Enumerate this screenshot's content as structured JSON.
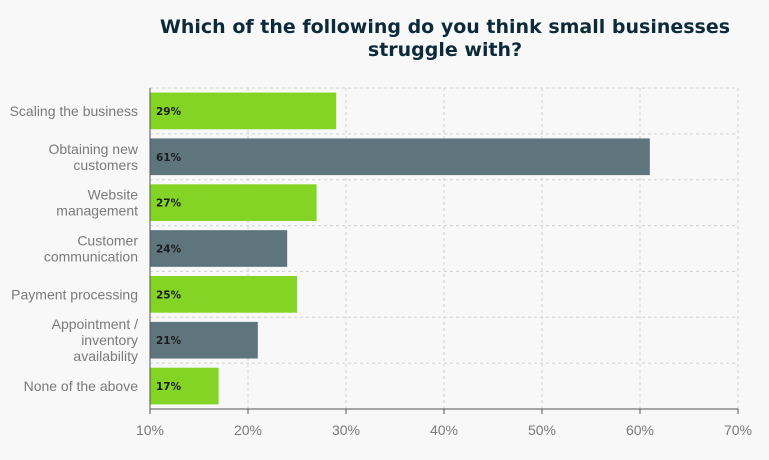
{
  "chart_data": {
    "type": "bar",
    "orientation": "horizontal",
    "title": "Which of the following do you think small businesses\nstruggle with?",
    "categories": [
      "Scaling the business",
      "Obtaining new\ncustomers",
      "Website\nmanagement",
      "Customer\ncommunication",
      "Payment processing",
      "Appointment /\ninventory\navailability",
      "None of the above"
    ],
    "values": [
      29,
      61,
      27,
      24,
      25,
      21,
      17
    ],
    "data_labels": [
      "29%",
      "61%",
      "27%",
      "24%",
      "25%",
      "21%",
      "17%"
    ],
    "bar_colors": [
      "#84d425",
      "#5f757e",
      "#84d425",
      "#5f757e",
      "#84d425",
      "#5f757e",
      "#84d425"
    ],
    "xlim": [
      10,
      70
    ],
    "x_ticks": [
      "10%",
      "20%",
      "30%",
      "40%",
      "50%",
      "60%",
      "70%"
    ],
    "xlabel": "",
    "ylabel": "",
    "grid": true,
    "grid_style": "dashed",
    "legend": "none"
  }
}
